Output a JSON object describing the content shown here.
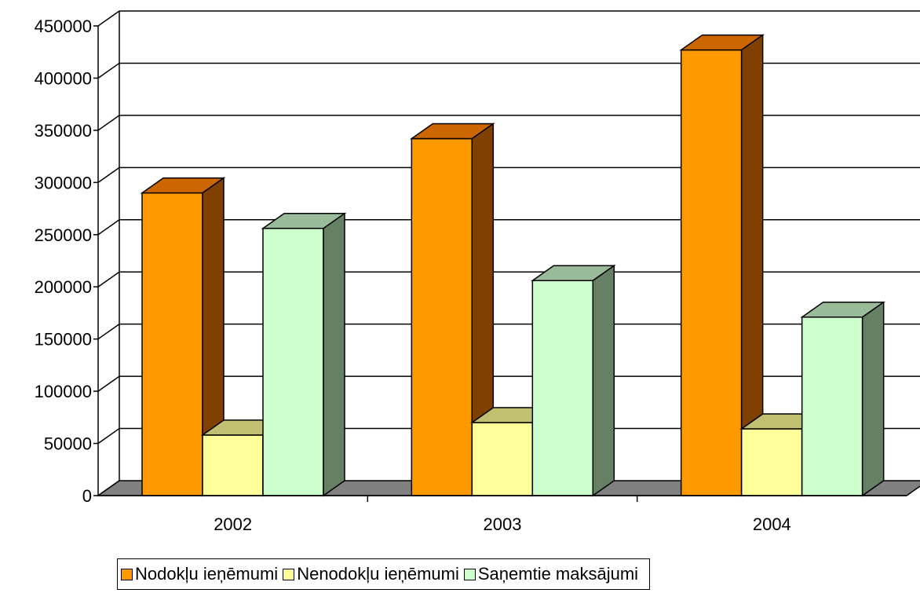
{
  "chart_data": {
    "type": "bar",
    "style": "3d-clustered-column",
    "categories": [
      "2002",
      "2003",
      "2004"
    ],
    "series": [
      {
        "name": "Nodokļu ieņēmumi",
        "values": [
          290000,
          342000,
          427000
        ],
        "color": "#FF9900",
        "top_color": "#CC6600",
        "side_color": "#804000"
      },
      {
        "name": "Nenodokļu ieņēmumi",
        "values": [
          58000,
          70000,
          64000
        ],
        "color": "#FFFF99",
        "top_color": "#C0C070",
        "side_color": "#808055"
      },
      {
        "name": "Saņemtie maksājumi",
        "values": [
          256000,
          206000,
          171000
        ],
        "color": "#CCFFCC",
        "top_color": "#99BB99",
        "side_color": "#668066"
      }
    ],
    "ylim": [
      0,
      450000
    ],
    "yticks": [
      "0",
      "50000",
      "100000",
      "150000",
      "200000",
      "250000",
      "300000",
      "350000",
      "400000",
      "450000"
    ],
    "grid": true,
    "legend_position": "bottom",
    "floor_color": "#808080"
  }
}
